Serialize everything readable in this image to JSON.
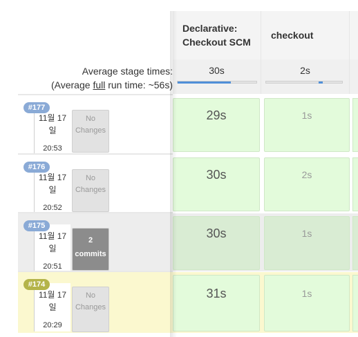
{
  "stages": [
    {
      "name_line1": "Declarative:",
      "name_line2": "Checkout SCM",
      "avg": "30s",
      "progress": 0.72
    },
    {
      "name_line1": "checkout",
      "name_line2": "",
      "avg": "2s",
      "progress": 0.72
    }
  ],
  "average": {
    "label": "Average stage times:",
    "full_prefix": "(Average ",
    "full_word": "full",
    "full_suffix": " run time: ~56s)"
  },
  "builds": [
    {
      "number": "#177",
      "date_line1": "11월 17",
      "date_line2": "일",
      "time": "20:53",
      "changes_line1": "No",
      "changes_line2": "Changes",
      "changes_type": "none",
      "durations": [
        "29s",
        "1s"
      ],
      "badge_color": "#8aaad6",
      "row_color": "#ffffff",
      "cell_color": "#e3fbdb"
    },
    {
      "number": "#176",
      "date_line1": "11월 17",
      "date_line2": "일",
      "time": "20:52",
      "changes_line1": "No",
      "changes_line2": "Changes",
      "changes_type": "none",
      "durations": [
        "30s",
        "2s"
      ],
      "badge_color": "#8aaad6",
      "row_color": "#ffffff",
      "cell_color": "#e3fbdb"
    },
    {
      "number": "#175",
      "date_line1": "11월 17",
      "date_line2": "일",
      "time": "20:51",
      "changes_line1": "2",
      "changes_line2": "commits",
      "changes_type": "commits",
      "durations": [
        "30s",
        "1s"
      ],
      "badge_color": "#8aaad6",
      "row_color": "#ededed",
      "cell_color": "#d9ecd3"
    },
    {
      "number": "#174",
      "date_line1": "11월 17",
      "date_line2": "일",
      "time": "20:29",
      "changes_line1": "No",
      "changes_line2": "Changes",
      "changes_type": "none",
      "durations": [
        "31s",
        "1s"
      ],
      "badge_color": "#b4b44a",
      "row_color": "#fbf8cf",
      "cell_color": "#e3fbdb"
    }
  ],
  "colors": {
    "progress_fill": "#4f8fd8",
    "success_cell": "#e3fbdb"
  }
}
